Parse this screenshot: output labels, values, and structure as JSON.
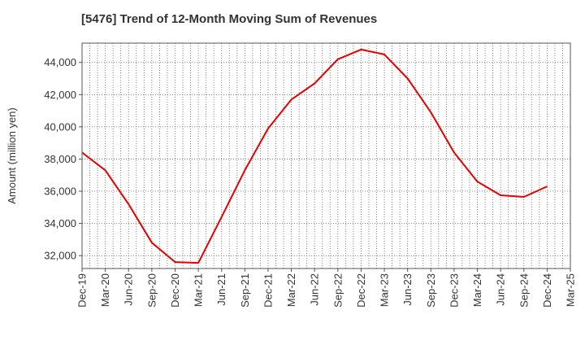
{
  "chart_data": {
    "type": "line",
    "title": "[5476]  Trend of 12-Month Moving Sum of Revenues",
    "xlabel": "",
    "ylabel": "Amount (million yen)",
    "ylim": [
      31200,
      45200
    ],
    "yticks": [
      32000,
      34000,
      36000,
      38000,
      40000,
      42000,
      44000
    ],
    "ytick_labels": [
      "32,000",
      "34,000",
      "36,000",
      "38,000",
      "40,000",
      "42,000",
      "44,000"
    ],
    "categories": [
      "Dec-19",
      "Mar-20",
      "Jun-20",
      "Sep-20",
      "Dec-20",
      "Mar-21",
      "Jun-21",
      "Sep-21",
      "Dec-21",
      "Mar-22",
      "Jun-22",
      "Sep-22",
      "Dec-22",
      "Mar-23",
      "Jun-23",
      "Sep-23",
      "Dec-23",
      "Mar-24",
      "Jun-24",
      "Sep-24",
      "Dec-24",
      "Mar-25"
    ],
    "series": [
      {
        "name": "",
        "color": "#e60000",
        "values": [
          38400,
          37300,
          35200,
          32800,
          31600,
          31550,
          34400,
          37300,
          39900,
          41700,
          42700,
          44200,
          44800,
          44500,
          43000,
          40900,
          38400,
          36600,
          35750,
          35650,
          36300,
          null
        ]
      }
    ],
    "grid": true,
    "legend": "none"
  }
}
